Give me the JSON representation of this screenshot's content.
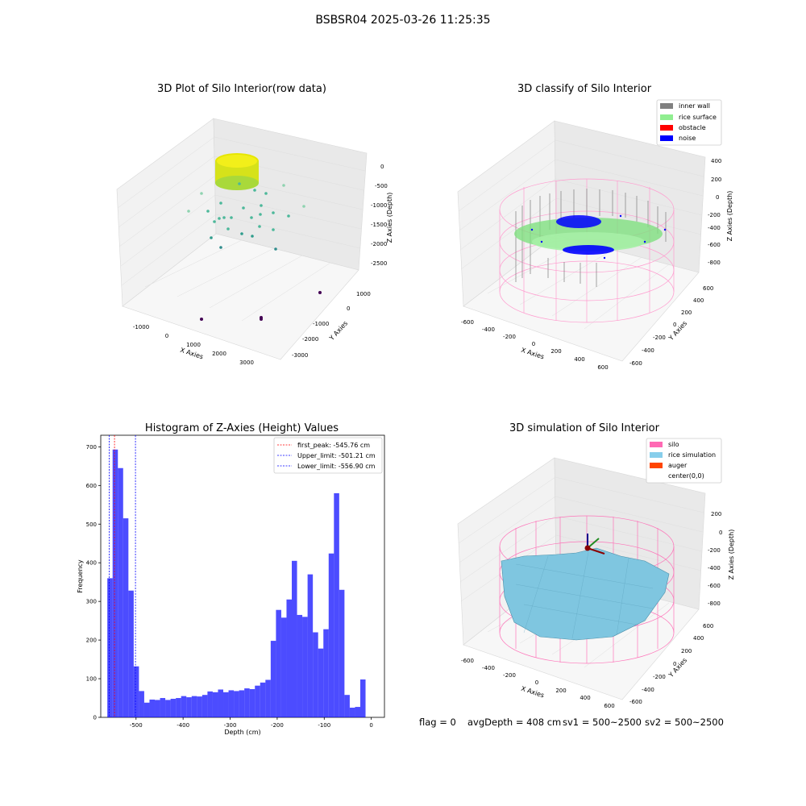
{
  "suptitle": "BSBSR04 2025-03-26 11:25:35",
  "raw_plot": {
    "title": "3D Plot of Silo Interior(row data)",
    "xlabel": "X Axies",
    "ylabel": "Y Axies",
    "zlabel": "Z Axies (Depth)",
    "xticks": [
      "-1000",
      "0",
      "1000",
      "2000",
      "3000"
    ],
    "yticks": [
      "1000",
      "0",
      "-1000",
      "-2000",
      "-3000"
    ],
    "zticks": [
      "0",
      "-500",
      "-1000",
      "-1500",
      "-2000",
      "-2500"
    ]
  },
  "classify_plot": {
    "title": "3D classify of Silo Interior",
    "xlabel": "X Axies",
    "ylabel": "Y Axies",
    "zlabel": "Z Axies (Depth)",
    "xticks": [
      "-600",
      "-400",
      "-200",
      "0",
      "200",
      "400",
      "600"
    ],
    "yticks": [
      "600",
      "400",
      "200",
      "0",
      "-200",
      "-400",
      "-600"
    ],
    "zticks": [
      "400",
      "200",
      "0",
      "-200",
      "-400",
      "-600",
      "-800"
    ],
    "legend": [
      {
        "label": "inner wall",
        "color": "#808080"
      },
      {
        "label": "rice surface",
        "color": "#90ee90"
      },
      {
        "label": "obstacle",
        "color": "#ff0000"
      },
      {
        "label": "noise",
        "color": "#0000ff"
      }
    ]
  },
  "simulation_plot": {
    "title": "3D simulation of Silo Interior",
    "xlabel": "X Axies",
    "ylabel": "Y Axies",
    "zlabel": "Z Axies (Depth)",
    "xticks": [
      "-600",
      "-400",
      "-200",
      "0",
      "200",
      "400",
      "600"
    ],
    "yticks": [
      "600",
      "400",
      "200",
      "0",
      "-200",
      "-400",
      "-600"
    ],
    "zticks": [
      "200",
      "0",
      "-200",
      "-400",
      "-600",
      "-800"
    ],
    "legend": [
      {
        "label": "silo",
        "color": "#ff69b4"
      },
      {
        "label": "rice simulation",
        "color": "#87ceeb"
      },
      {
        "label": "auger",
        "color": "#ff4500"
      },
      {
        "label": "center(0,0)",
        "color": ""
      }
    ]
  },
  "footer": {
    "flag": "flag = 0",
    "avg_depth": "avgDepth = 408 cm",
    "sv1": "sv1 = 500~2500",
    "sv2": "sv2 = 500~2500"
  },
  "chart_data": {
    "type": "bar",
    "title": "Histogram of Z-Axies (Height) Values",
    "xlabel": "Depth (cm)",
    "ylabel": "Frequency",
    "xlim": [
      -575,
      28
    ],
    "ylim": [
      0,
      730
    ],
    "xticks": [
      -500,
      -400,
      -300,
      -200,
      -100,
      0
    ],
    "yticks": [
      0,
      100,
      200,
      300,
      400,
      500,
      600,
      700
    ],
    "bar_color": "#0000ff",
    "bin_start": -561,
    "bin_width": 11.2,
    "values": [
      360,
      693,
      645,
      515,
      328,
      132,
      68,
      38,
      46,
      45,
      50,
      45,
      48,
      50,
      55,
      52,
      55,
      54,
      58,
      67,
      65,
      72,
      65,
      70,
      68,
      70,
      75,
      73,
      82,
      90,
      97,
      198,
      278,
      258,
      305,
      405,
      265,
      260,
      370,
      220,
      178,
      228,
      424,
      580,
      330,
      58,
      25,
      27,
      98
    ],
    "vlines": [
      {
        "label": "first_peak: -545.76 cm",
        "x": -545.76,
        "color": "#ff0000"
      },
      {
        "label": "Upper_limit: -501.21 cm",
        "x": -501.21,
        "color": "#0000ff"
      },
      {
        "label": "Lower_limit: -556.90 cm",
        "x": -556.9,
        "color": "#0000ff"
      }
    ]
  }
}
